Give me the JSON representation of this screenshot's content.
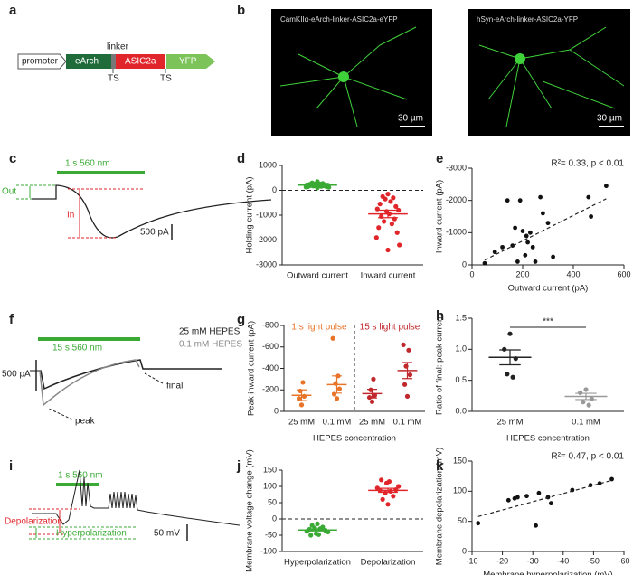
{
  "a": {
    "label": "a",
    "promoter": "promoter",
    "earch": "eArch",
    "linker": "linker",
    "asic2a": "ASIC2a",
    "yfp": "YFP",
    "ts": [
      "TS",
      "TS"
    ]
  },
  "b": {
    "label": "b",
    "images": [
      {
        "caption": "CamKIIα-eArch-linker-ASIC2a-eYFP",
        "scale": "30 µm"
      },
      {
        "caption": "hSyn-eArch-linker-ASIC2a-YFP",
        "scale": "30 µm"
      }
    ]
  },
  "c": {
    "label": "c",
    "light": "1 s 560 nm",
    "out": "Out",
    "in": "In",
    "scale": "500 pA"
  },
  "f": {
    "label": "f",
    "light": "15 s 560 nm",
    "legend": [
      "25 mM HEPES",
      "0.1 mM HEPES"
    ],
    "scale": "500 pA",
    "peak": "peak",
    "final": "final"
  },
  "i": {
    "label": "i",
    "light": "1 s 560 nm",
    "depolarization": "Depolarization",
    "hyperpolarization": "Hyperpolarization",
    "scale": "50 mV"
  },
  "chart_data": [
    {
      "type": "strip",
      "panel": "d",
      "ylabel": "Holding current (pA)",
      "ylim": [
        -3000,
        1000
      ],
      "yticks": [
        1000,
        0,
        -1000,
        -2000,
        -3000
      ],
      "zero_line": true,
      "groups": [
        {
          "category": "Outward current",
          "color": "#3aaa35",
          "values": [
            350,
            300,
            280,
            260,
            250,
            240,
            230,
            220,
            210,
            200,
            200,
            190,
            180,
            170,
            160,
            150,
            140,
            130,
            120,
            100
          ],
          "mean": 210,
          "error": 15
        },
        {
          "category": "Inward current",
          "color": "#e0262b",
          "values": [
            -150,
            -250,
            -300,
            -350,
            -450,
            -550,
            -650,
            -750,
            -800,
            -850,
            -950,
            -1050,
            -1150,
            -1250,
            -1350,
            -1500,
            -1700,
            -1900,
            -2200,
            -2400
          ],
          "mean": -950,
          "error": 150
        }
      ]
    },
    {
      "type": "scatter",
      "panel": "e",
      "xlabel": "Outward current (pA)",
      "ylabel": "Inward current (pA)",
      "annotation": "R²= 0.33, p < 0.01",
      "xlim": [
        0,
        600
      ],
      "xticks": [
        0,
        200,
        400,
        600
      ],
      "ylim": [
        0,
        -3000
      ],
      "yticks": [
        0,
        -1000,
        -2000,
        -3000
      ],
      "color": "#111111",
      "x": [
        50,
        90,
        120,
        140,
        160,
        170,
        180,
        190,
        200,
        210,
        215,
        220,
        230,
        240,
        250,
        270,
        280,
        300,
        320,
        460,
        470,
        530
      ],
      "y": [
        -50,
        -400,
        -550,
        -2000,
        -600,
        -1150,
        -100,
        -2000,
        -1050,
        -300,
        -900,
        -700,
        -1000,
        -550,
        -100,
        -2100,
        -1600,
        -1300,
        -250,
        -2100,
        -1500,
        -2450
      ],
      "fit": {
        "x": [
          50,
          530
        ],
        "y": [
          -150,
          -2050
        ]
      }
    },
    {
      "type": "strip",
      "panel": "g",
      "ylabel": "Peak inward current (pA)",
      "xlabel": "HEPES concentration",
      "ylim": [
        0,
        -800
      ],
      "yticks": [
        0,
        -200,
        -400,
        -600,
        -800
      ],
      "divider": true,
      "sections": [
        {
          "label": "1 s light pulse",
          "color": "#e8742a"
        },
        {
          "label": "15 s light pulse",
          "color": "#c0282d"
        }
      ],
      "groups": [
        {
          "category": "25 mM",
          "color": "#e8742a",
          "values": [
            -60,
            -120,
            -140,
            -190,
            -270
          ],
          "mean": -150,
          "error": 50
        },
        {
          "category": "0.1 mM",
          "color": "#e8742a",
          "values": [
            -120,
            -160,
            -210,
            -260,
            -330,
            -680
          ],
          "mean": -250,
          "error": 80
        },
        {
          "category": "25 mM",
          "color": "#c0282d",
          "values": [
            -90,
            -130,
            -150,
            -200,
            -300
          ],
          "mean": -165,
          "error": 40
        },
        {
          "category": "0.1 mM",
          "color": "#c0282d",
          "values": [
            -140,
            -250,
            -340,
            -420,
            -570,
            -620
          ],
          "mean": -380,
          "error": 75
        }
      ]
    },
    {
      "type": "strip",
      "panel": "h",
      "ylabel": "Ratio of final: peak current",
      "xlabel": "HEPES concentration",
      "ylim": [
        0,
        1.5
      ],
      "yticks": [
        {
          "value": 0,
          "label": "0.0"
        },
        0.5,
        {
          "value": 1,
          "label": "1.0"
        },
        1.5
      ],
      "significance": "***",
      "groups": [
        {
          "category": "25 mM",
          "color": "#222222",
          "values": [
            1.25,
            1.0,
            0.85,
            0.6,
            0.55
          ],
          "mean": 0.87,
          "error": 0.12
        },
        {
          "category": "0.1 mM",
          "color": "#999999",
          "values": [
            0.35,
            0.3,
            0.2,
            0.15,
            0.1
          ],
          "mean": 0.24,
          "error": 0.05
        }
      ]
    },
    {
      "type": "strip",
      "panel": "j",
      "ylabel": "Membrane voltage change (mV)",
      "ylim": [
        -100,
        150
      ],
      "yticks": [
        150,
        100,
        50,
        0,
        -50,
        -100
      ],
      "zero_line": true,
      "groups": [
        {
          "category": "Hyperpolarization",
          "color": "#3aaa35",
          "values": [
            -15,
            -20,
            -25,
            -28,
            -30,
            -32,
            -35,
            -38,
            -40,
            -45,
            -48,
            -50
          ],
          "mean": -34,
          "error": 3
        },
        {
          "category": "Depolarization",
          "color": "#e0262b",
          "values": [
            45,
            60,
            70,
            80,
            85,
            88,
            90,
            95,
            100,
            110,
            115,
            120
          ],
          "mean": 88,
          "error": 6
        }
      ]
    },
    {
      "type": "scatter",
      "panel": "k",
      "xlabel": "Membrane hyperpolarization (mV)",
      "ylabel": "Membrane depolarization (mV)",
      "annotation": "R²= 0.47, p < 0.01",
      "xlim": [
        -10,
        -60
      ],
      "xticks": [
        -10,
        -20,
        -30,
        -40,
        -50,
        -60
      ],
      "ylim": [
        0,
        150
      ],
      "yticks": [
        0,
        50,
        100,
        150
      ],
      "color": "#111111",
      "x": [
        -12,
        -22,
        -24,
        -25,
        -28,
        -31,
        -32,
        -35,
        -36,
        -43,
        -49,
        -52,
        -56
      ],
      "y": [
        47,
        85,
        88,
        90,
        92,
        43,
        97,
        90,
        80,
        102,
        110,
        113,
        120
      ],
      "fit": {
        "x": [
          -12,
          -56
        ],
        "y": [
          58,
          118
        ]
      }
    }
  ]
}
